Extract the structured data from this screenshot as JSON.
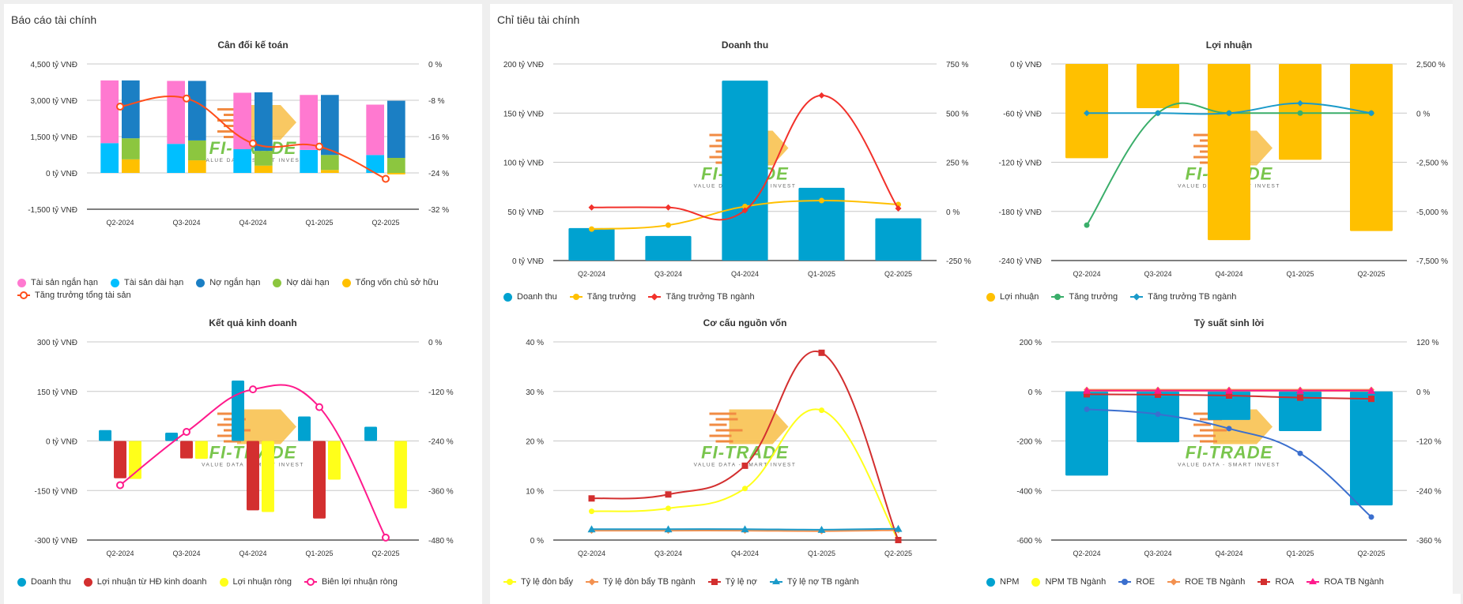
{
  "left_panel": {
    "title": "Báo cáo tài chính"
  },
  "right_panel": {
    "title": "Chỉ tiêu tài chính"
  },
  "watermark": {
    "name": "FI-TRADE",
    "tagline": "VALUE DATA - SMART INVEST"
  },
  "chart_data": [
    {
      "id": "balance",
      "type": "bar",
      "title": "Cân đối kế toán",
      "categories": [
        "Q2-2024",
        "Q3-2024",
        "Q4-2024",
        "Q1-2025",
        "Q2-2025"
      ],
      "ylim": [
        -1500,
        4500
      ],
      "yticks": [
        4500,
        3000,
        1500,
        0,
        -1500
      ],
      "ytick_labels": [
        "4,500 tỷ VNĐ",
        "3,000 tỷ VNĐ",
        "1,500 tỷ VNĐ",
        "0 tỷ VNĐ",
        "-1,500 tỷ VNĐ"
      ],
      "y2lim": [
        -32,
        0
      ],
      "y2ticks": [
        0,
        -8,
        -16,
        -24,
        -32
      ],
      "y2tick_labels": [
        "0 %",
        "-8 %",
        "-16 %",
        "-24 %",
        "-32 %"
      ],
      "stacks": [
        {
          "stack": "assets",
          "series": [
            {
              "name": "Tài sản dài hạn",
              "color": "#00bfff",
              "values": [
                1230,
                1200,
                980,
                950,
                740
              ]
            },
            {
              "name": "Tài sản ngắn hạn",
              "color": "#ff79d0",
              "values": [
                2590,
                2600,
                2330,
                2270,
                2080
              ]
            }
          ]
        },
        {
          "stack": "liabilities",
          "series": [
            {
              "name": "Tổng vốn chủ sở hữu",
              "color": "#ffc000",
              "values": [
                560,
                520,
                300,
                120,
                -60
              ]
            },
            {
              "name": "Nợ dài hạn",
              "color": "#8cc63f",
              "values": [
                870,
                820,
                610,
                620,
                620
              ]
            },
            {
              "name": "Nợ ngắn hạn",
              "color": "#1b7fc4",
              "values": [
                2390,
                2460,
                2420,
                2480,
                2360
              ]
            }
          ]
        }
      ],
      "lines": [
        {
          "name": "Tăng trưởng tổng tài sản",
          "color": "#ff4d1a",
          "axis": "y2",
          "marker": "open-circle",
          "values": [
            -9.4,
            -7.6,
            -17.5,
            -18.2,
            -25.3
          ]
        }
      ],
      "legend": [
        {
          "name": "Tài sản ngắn hạn",
          "color": "#ff79d0",
          "kind": "dot"
        },
        {
          "name": "Tài sản dài hạn",
          "color": "#00bfff",
          "kind": "dot"
        },
        {
          "name": "Nợ ngắn hạn",
          "color": "#1b7fc4",
          "kind": "dot"
        },
        {
          "name": "Nợ dài hạn",
          "color": "#8cc63f",
          "kind": "dot"
        },
        {
          "name": "Tổng vốn chủ sở hữu",
          "color": "#ffc000",
          "kind": "dot"
        },
        {
          "name": "Tăng trưởng tổng tài sản",
          "color": "#ff4d1a",
          "kind": "open-circle"
        }
      ]
    },
    {
      "id": "revenue",
      "type": "bar",
      "title": "Doanh thu",
      "categories": [
        "Q2-2024",
        "Q3-2024",
        "Q4-2024",
        "Q1-2025",
        "Q2-2025"
      ],
      "ylim": [
        0,
        200
      ],
      "yticks": [
        200,
        150,
        100,
        50,
        0
      ],
      "ytick_labels": [
        "200 tỷ VNĐ",
        "150 tỷ VNĐ",
        "100 tỷ VNĐ",
        "50 tỷ VNĐ",
        "0 tỷ VNĐ"
      ],
      "y2lim": [
        -250,
        750
      ],
      "y2ticks": [
        750,
        500,
        250,
        0,
        -250
      ],
      "y2tick_labels": [
        "750 %",
        "500 %",
        "250 %",
        "0 %",
        "-250 %"
      ],
      "bars": [
        {
          "name": "Doanh thu",
          "color": "#00a2d0",
          "values": [
            33,
            25,
            183,
            74,
            43
          ]
        }
      ],
      "lines": [
        {
          "name": "Tăng trưởng",
          "color": "#ffc000",
          "axis": "y2",
          "marker": "dot",
          "values": [
            -90,
            -70,
            25,
            55,
            35
          ]
        },
        {
          "name": "Tăng trưởng TB ngành",
          "color": "#f2312b",
          "axis": "y2",
          "marker": "diamond",
          "values": [
            20,
            20,
            5,
            590,
            15
          ]
        }
      ],
      "legend": [
        {
          "name": "Doanh thu",
          "color": "#00a2d0",
          "kind": "dot"
        },
        {
          "name": "Tăng trưởng",
          "color": "#ffc000",
          "kind": "line-dot"
        },
        {
          "name": "Tăng trưởng TB ngành",
          "color": "#f2312b",
          "kind": "line-diamond"
        }
      ]
    },
    {
      "id": "profit",
      "type": "bar",
      "title": "Lợi nhuận",
      "categories": [
        "Q2-2024",
        "Q3-2024",
        "Q4-2024",
        "Q1-2025",
        "Q2-2025"
      ],
      "ylim": [
        -240,
        0
      ],
      "yticks": [
        0,
        -60,
        -120,
        -180,
        -240
      ],
      "ytick_labels": [
        "0 tỷ VNĐ",
        "-60 tỷ VNĐ",
        "-120 tỷ VNĐ",
        "-180 tỷ VNĐ",
        "-240 tỷ VNĐ"
      ],
      "y2lim": [
        -7500,
        2500
      ],
      "y2ticks": [
        2500,
        0,
        -2500,
        -5000,
        -7500
      ],
      "y2tick_labels": [
        "2,500 %",
        "0 %",
        "-2,500 %",
        "-5,000 %",
        "-7,500 %"
      ],
      "bars": [
        {
          "name": "Lợi nhuận",
          "color": "#ffc000",
          "values": [
            -115,
            -54,
            -215,
            -117,
            -204
          ]
        }
      ],
      "lines": [
        {
          "name": "Tăng trưởng",
          "color": "#3aae6a",
          "axis": "y2",
          "marker": "dot",
          "values": [
            -5700,
            0,
            0,
            0,
            0
          ]
        },
        {
          "name": "Tăng trưởng TB ngành",
          "color": "#1a9ac9",
          "axis": "y2",
          "marker": "diamond",
          "values": [
            0,
            0,
            0,
            500,
            0
          ]
        }
      ],
      "legend": [
        {
          "name": "Lợi nhuận",
          "color": "#ffc000",
          "kind": "dot"
        },
        {
          "name": "Tăng trưởng",
          "color": "#3aae6a",
          "kind": "line-dot"
        },
        {
          "name": "Tăng trưởng TB ngành",
          "color": "#1a9ac9",
          "kind": "line-diamond"
        }
      ]
    },
    {
      "id": "business",
      "type": "bar",
      "title": "Kết quả kinh doanh",
      "categories": [
        "Q2-2024",
        "Q3-2024",
        "Q4-2024",
        "Q1-2025",
        "Q2-2025"
      ],
      "ylim": [
        -300,
        300
      ],
      "yticks": [
        300,
        150,
        0,
        -150,
        -300
      ],
      "ytick_labels": [
        "300 tỷ VNĐ",
        "150 tỷ VNĐ",
        "0 tỷ VNĐ",
        "-150 tỷ VNĐ",
        "-300 tỷ VNĐ"
      ],
      "y2lim": [
        -480,
        0
      ],
      "y2ticks": [
        0,
        -120,
        -240,
        -360,
        -480
      ],
      "y2tick_labels": [
        "0 %",
        "-120 %",
        "-240 %",
        "-360 %",
        "-480 %"
      ],
      "bars": [
        {
          "name": "Doanh thu",
          "color": "#00a2d0",
          "values": [
            33,
            25,
            183,
            74,
            43
          ]
        },
        {
          "name": "Lợi nhuận từ HĐ kinh doanh",
          "color": "#d32f2f",
          "values": [
            -113,
            -53,
            -210,
            -235,
            0
          ]
        },
        {
          "name": "Lợi nhuận ròng",
          "color": "#ffff1a",
          "values": [
            -115,
            -54,
            -215,
            -117,
            -204
          ]
        }
      ],
      "lines": [
        {
          "name": "Biên lợi nhuận ròng",
          "color": "#ff1a8c",
          "axis": "y2",
          "marker": "open-circle",
          "values": [
            -347,
            -218,
            -115,
            -158,
            -474
          ]
        }
      ],
      "legend": [
        {
          "name": "Doanh thu",
          "color": "#00a2d0",
          "kind": "dot"
        },
        {
          "name": "Lợi nhuận từ HĐ kinh doanh",
          "color": "#d32f2f",
          "kind": "dot"
        },
        {
          "name": "Lợi nhuận ròng",
          "color": "#ffff1a",
          "kind": "dot"
        },
        {
          "name": "Biên lợi nhuận ròng",
          "color": "#ff1a8c",
          "kind": "open-circle"
        }
      ]
    },
    {
      "id": "capital",
      "type": "line",
      "title": "Cơ cấu nguồn vốn",
      "categories": [
        "Q2-2024",
        "Q3-2024",
        "Q4-2024",
        "Q1-2025",
        "Q2-2025"
      ],
      "ylim": [
        0,
        40
      ],
      "yticks": [
        40,
        30,
        20,
        10,
        0
      ],
      "ytick_labels": [
        "40 %",
        "30 %",
        "20 %",
        "10 %",
        "0 %"
      ],
      "bars": [],
      "lines": [
        {
          "name": "Tỷ lệ đòn bẩy",
          "color": "#ffff1a",
          "axis": "y",
          "marker": "dot",
          "values": [
            5.8,
            6.4,
            10.4,
            26.2,
            0
          ]
        },
        {
          "name": "Tỷ lệ đòn bẩy TB ngành",
          "color": "#f39150",
          "axis": "y",
          "marker": "diamond",
          "values": [
            1.9,
            1.9,
            1.9,
            1.8,
            2.0
          ]
        },
        {
          "name": "Tỷ lệ nợ",
          "color": "#d32f2f",
          "axis": "y",
          "marker": "square",
          "values": [
            8.4,
            9.2,
            15.0,
            37.8,
            0
          ]
        },
        {
          "name": "Tỷ lệ nợ TB ngành",
          "color": "#1a9ac9",
          "axis": "y",
          "marker": "triangle",
          "values": [
            2.2,
            2.2,
            2.2,
            2.1,
            2.3
          ]
        }
      ],
      "legend": [
        {
          "name": "Tỷ lệ đòn bẩy",
          "color": "#ffff1a",
          "kind": "line-dot"
        },
        {
          "name": "Tỷ lệ đòn bẩy TB ngành",
          "color": "#f39150",
          "kind": "line-diamond"
        },
        {
          "name": "Tỷ lệ nợ",
          "color": "#d32f2f",
          "kind": "line-square"
        },
        {
          "name": "Tỷ lệ nợ TB ngành",
          "color": "#1a9ac9",
          "kind": "line-triangle"
        }
      ]
    },
    {
      "id": "profitability",
      "type": "bar",
      "title": "Tỷ suất sinh lời",
      "categories": [
        "Q2-2024",
        "Q3-2024",
        "Q4-2024",
        "Q1-2025",
        "Q2-2025"
      ],
      "ylim": [
        -600,
        200
      ],
      "yticks": [
        200,
        0,
        -200,
        -400,
        -600
      ],
      "ytick_labels": [
        "200 %",
        "0 %",
        "-200 %",
        "-400 %",
        "-600 %"
      ],
      "y2lim": [
        -360,
        120
      ],
      "y2ticks": [
        120,
        0,
        -120,
        -240,
        -360
      ],
      "y2tick_labels": [
        "120 %",
        "0 %",
        "-120 %",
        "-240 %",
        "-360 %"
      ],
      "bars": [
        {
          "name": "NPM",
          "color": "#00a2d0",
          "values": [
            -340,
            -205,
            -115,
            -160,
            -460
          ]
        }
      ],
      "lines": [
        {
          "name": "NPM TB Ngành",
          "color": "#ffff1a",
          "axis": "y",
          "marker": "none",
          "values": [
            2,
            3,
            3,
            3,
            2
          ]
        },
        {
          "name": "ROE",
          "color": "#3b6fce",
          "axis": "y",
          "marker": "dot",
          "values": [
            -72,
            -92,
            -150,
            -250,
            -507
          ]
        },
        {
          "name": "ROE TB Ngành",
          "color": "#f39150",
          "axis": "y2",
          "marker": "diamond",
          "values": [
            4,
            4,
            4,
            4,
            4
          ]
        },
        {
          "name": "ROA",
          "color": "#d32f2f",
          "axis": "y2",
          "marker": "square",
          "values": [
            -7,
            -8,
            -10,
            -15,
            -18
          ]
        },
        {
          "name": "ROA TB Ngành",
          "color": "#ff1a8c",
          "axis": "y2",
          "marker": "triangle",
          "values": [
            2,
            2,
            2,
            2,
            2
          ]
        }
      ],
      "legend": [
        {
          "name": "NPM",
          "color": "#00a2d0",
          "kind": "dot"
        },
        {
          "name": "NPM TB Ngành",
          "color": "#ffff1a",
          "kind": "dot"
        },
        {
          "name": "ROE",
          "color": "#3b6fce",
          "kind": "line-dot"
        },
        {
          "name": "ROE TB Ngành",
          "color": "#f39150",
          "kind": "line-diamond"
        },
        {
          "name": "ROA",
          "color": "#d32f2f",
          "kind": "line-square"
        },
        {
          "name": "ROA TB Ngành",
          "color": "#ff1a8c",
          "kind": "line-triangle"
        }
      ]
    }
  ]
}
